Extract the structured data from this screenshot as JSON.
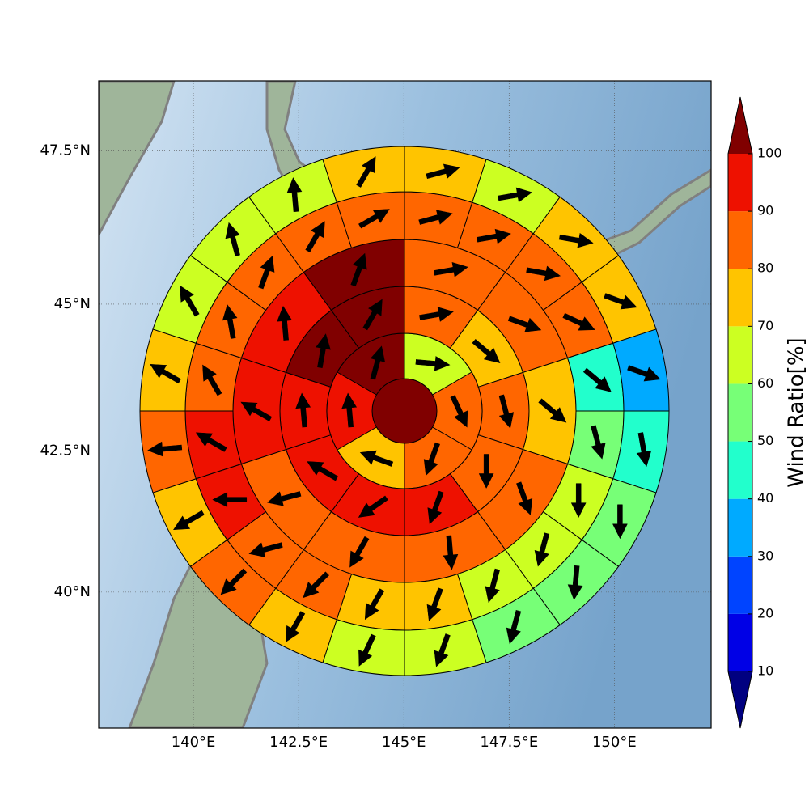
{
  "chart_data": {
    "type": "sectormap",
    "xlim": [
      137.75,
      152.3
    ],
    "ylim": [
      37.5,
      48.6
    ],
    "xticks": [
      {
        "value": 140,
        "label": "140°E"
      },
      {
        "value": 142.5,
        "label": "142.5°E"
      },
      {
        "value": 145,
        "label": "145°E"
      },
      {
        "value": 147.5,
        "label": "147.5°E"
      },
      {
        "value": 150,
        "label": "150°E"
      }
    ],
    "yticks": [
      {
        "value": 40,
        "label": "40°N"
      },
      {
        "value": 42.5,
        "label": "42.5°N"
      },
      {
        "value": 45,
        "label": "45°N"
      },
      {
        "value": 47.5,
        "label": "47.5°N"
      }
    ],
    "grid": true,
    "colorbar_label": "Wind Ratio[%]",
    "levels": [
      10,
      20,
      30,
      40,
      50,
      60,
      70,
      80,
      90,
      100
    ],
    "colors": [
      "#000080",
      "#0000e6",
      "#0044ff",
      "#00aaff",
      "#22ffcc",
      "#77ff77",
      "#ccff22",
      "#ffc400",
      "#ff6600",
      "#ee1100",
      "#800000"
    ],
    "rings": [
      {
        "values": [
          105
        ],
        "directions": [
          null
        ]
      },
      {
        "values": [
          65,
          85,
          85,
          75,
          95,
          105
        ],
        "directions": [
          95,
          155,
          200,
          290,
          355,
          15
        ]
      },
      {
        "values": [
          85,
          75,
          85,
          85,
          95,
          95,
          95,
          95,
          105,
          105
        ],
        "directions": [
          80,
          130,
          165,
          180,
          200,
          235,
          300,
          355,
          10,
          30
        ]
      },
      {
        "values": [
          85,
          85,
          75,
          85,
          85,
          85,
          85,
          95,
          95,
          105
        ],
        "directions": [
          80,
          110,
          130,
          160,
          175,
          210,
          255,
          300,
          355,
          20
        ]
      },
      {
        "values": [
          85,
          85,
          85,
          85,
          45,
          55,
          65,
          65,
          65,
          75,
          75,
          85,
          85,
          95,
          95,
          85,
          85,
          85,
          85,
          85
        ],
        "directions": [
          75,
          80,
          100,
          115,
          130,
          165,
          180,
          195,
          195,
          200,
          210,
          225,
          255,
          270,
          300,
          330,
          350,
          20,
          30,
          60
        ]
      },
      {
        "values": [
          75,
          65,
          75,
          75,
          35,
          45,
          55,
          55,
          55,
          65,
          65,
          75,
          85,
          75,
          85,
          75,
          65,
          65,
          65,
          75
        ],
        "directions": [
          75,
          80,
          100,
          110,
          110,
          170,
          180,
          185,
          195,
          200,
          205,
          210,
          225,
          240,
          265,
          300,
          330,
          345,
          355,
          30
        ]
      }
    ]
  }
}
